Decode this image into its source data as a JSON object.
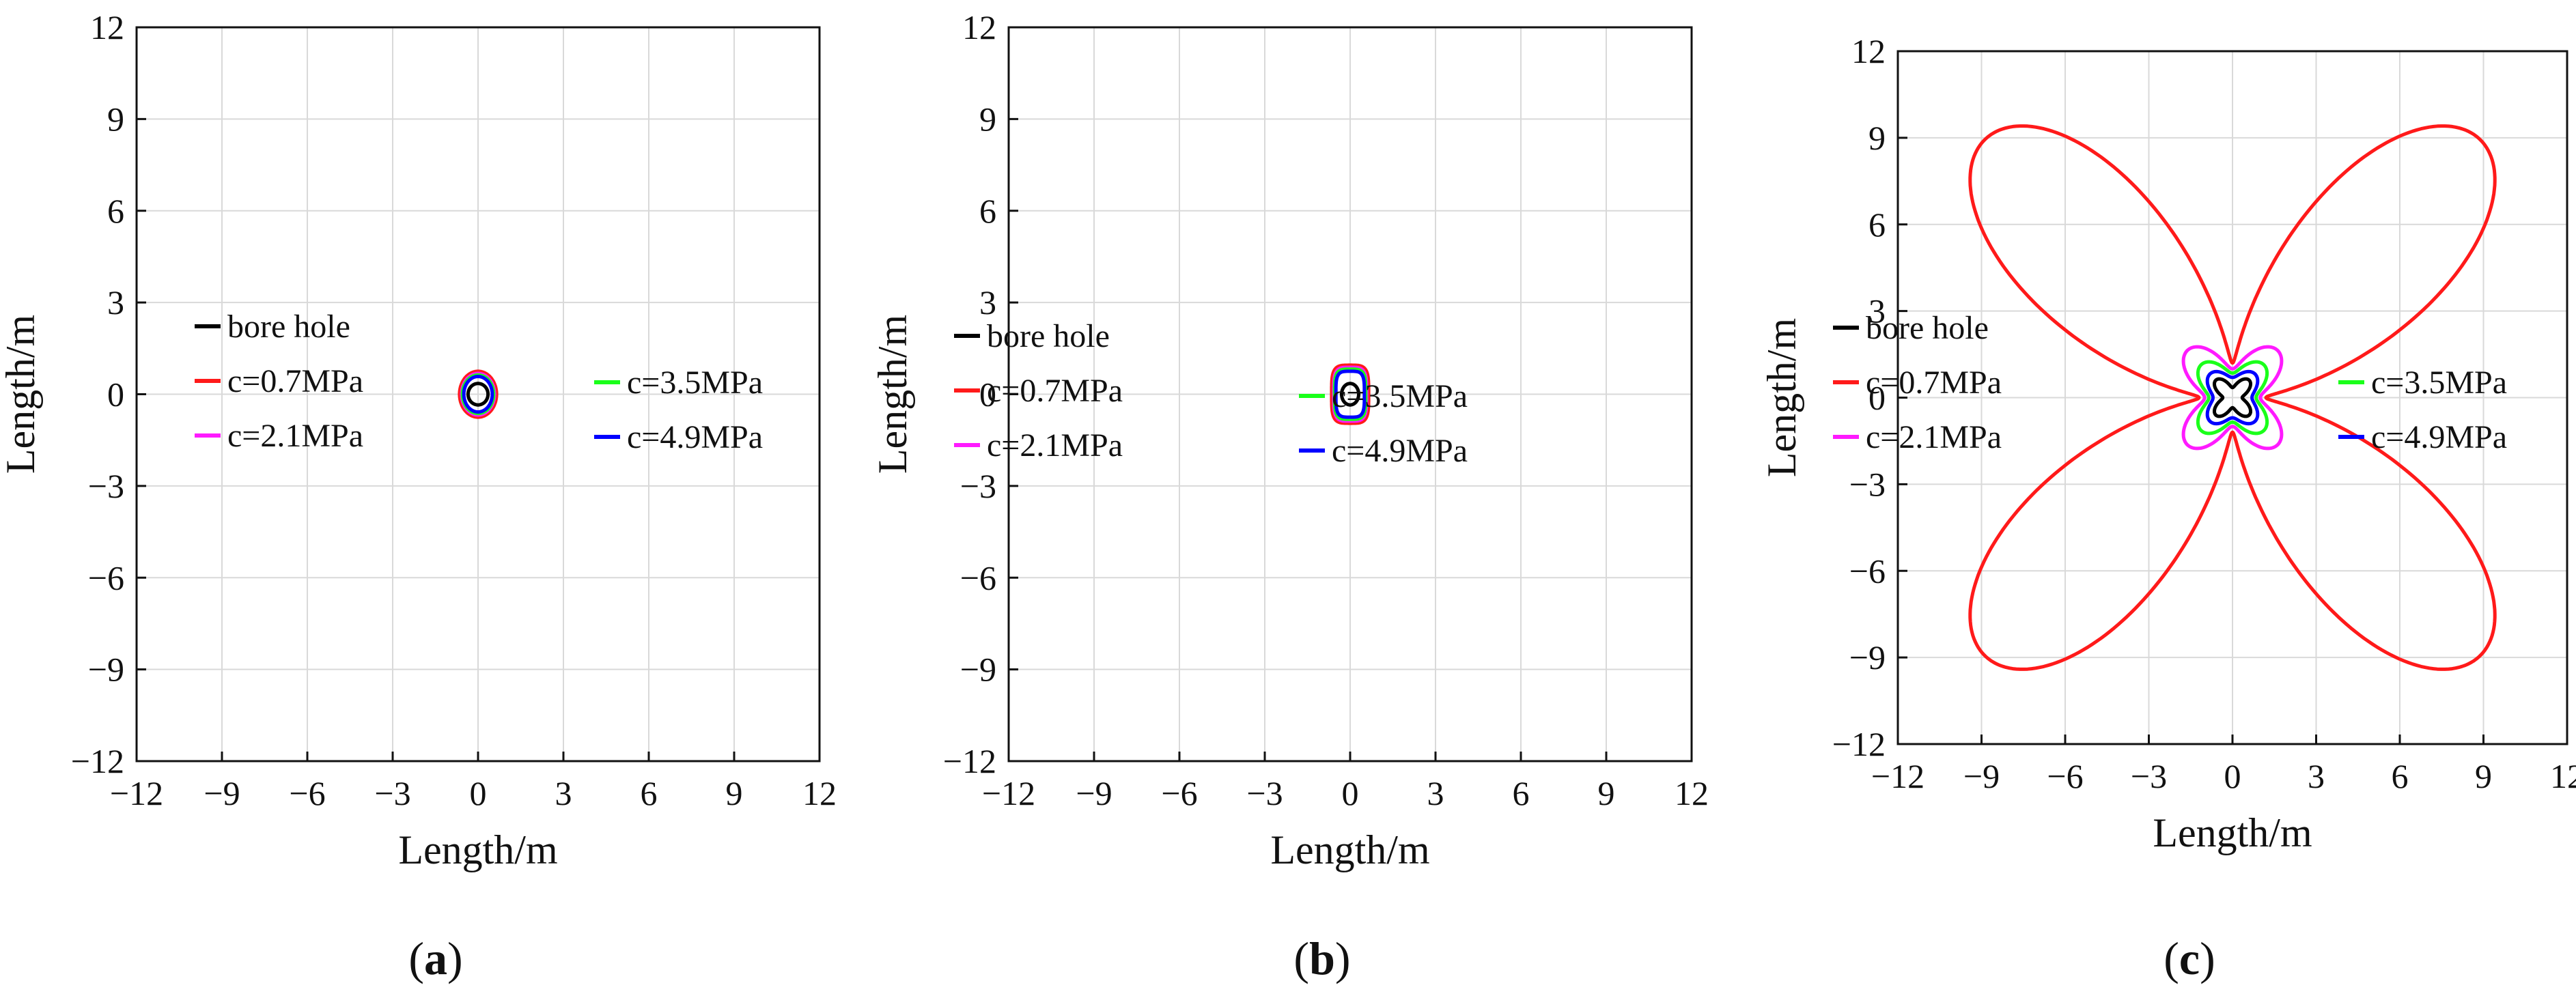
{
  "chart_data": [
    {
      "type": "line",
      "panel_label": "a",
      "xlabel": "Length/m",
      "ylabel": "Length/m",
      "xlim": [
        -12,
        12
      ],
      "ylim": [
        -12,
        12
      ],
      "ticks": [
        -12,
        -9,
        -6,
        -3,
        0,
        3,
        6,
        9,
        12
      ],
      "grid": true,
      "legend": [
        {
          "label": "bore hole",
          "color": "#000000"
        },
        {
          "label": "c=0.7MPa",
          "color": "#ff1a1a"
        },
        {
          "label": "c=2.1MPa",
          "color": "#ff1aff"
        },
        {
          "label": "c=3.5MPa",
          "color": "#1aff1a"
        },
        {
          "label": "c=4.9MPa",
          "color": "#0000ff"
        }
      ],
      "series": [
        {
          "name": "bore hole",
          "color": "#000000",
          "shape": "ellipse",
          "rx": 0.35,
          "ry": 0.35
        },
        {
          "name": "c=0.7MPa",
          "color": "#ff1a1a",
          "shape": "ellipse",
          "rx": 0.65,
          "ry": 0.75
        },
        {
          "name": "c=2.1MPa",
          "color": "#ff1aff",
          "shape": "ellipse",
          "rx": 0.58,
          "ry": 0.68
        },
        {
          "name": "c=3.5MPa",
          "color": "#1aff1a",
          "shape": "ellipse",
          "rx": 0.55,
          "ry": 0.63
        },
        {
          "name": "c=4.9MPa",
          "color": "#0000ff",
          "shape": "ellipse",
          "rx": 0.5,
          "ry": 0.58
        }
      ]
    },
    {
      "type": "line",
      "panel_label": "b",
      "xlabel": "Length/m",
      "ylabel": "Length/m",
      "xlim": [
        -12,
        12
      ],
      "ylim": [
        -12,
        12
      ],
      "ticks": [
        -12,
        -9,
        -6,
        -3,
        0,
        3,
        6,
        9,
        12
      ],
      "grid": true,
      "legend": [
        {
          "label": "bore hole",
          "color": "#000000"
        },
        {
          "label": "c=0.7MPa",
          "color": "#ff1a1a"
        },
        {
          "label": "c=2.1MPa",
          "color": "#ff1aff"
        },
        {
          "label": "c=3.5MPa",
          "color": "#1aff1a"
        },
        {
          "label": "c=4.9MPa",
          "color": "#0000ff"
        }
      ],
      "series": [
        {
          "name": "bore hole",
          "color": "#000000",
          "shape": "ellipse",
          "rx": 0.3,
          "ry": 0.35
        },
        {
          "name": "c=0.7MPa",
          "color": "#ff1a1a",
          "shape": "squircle",
          "rx": 0.65,
          "ry": 0.95
        },
        {
          "name": "c=2.1MPa",
          "color": "#ff1aff",
          "shape": "squircle",
          "rx": 0.58,
          "ry": 0.88
        },
        {
          "name": "c=3.5MPa",
          "color": "#1aff1a",
          "shape": "squircle",
          "rx": 0.55,
          "ry": 0.82
        },
        {
          "name": "c=4.9MPa",
          "color": "#0000ff",
          "shape": "squircle",
          "rx": 0.5,
          "ry": 0.75
        }
      ]
    },
    {
      "type": "line",
      "panel_label": "c",
      "xlabel": "Length/m",
      "ylabel": "Length/m",
      "xlim": [
        -12,
        12
      ],
      "ylim": [
        -12,
        12
      ],
      "ticks": [
        -12,
        -9,
        -6,
        -3,
        0,
        3,
        6,
        9,
        12
      ],
      "grid": true,
      "legend": [
        {
          "label": "bore hole",
          "color": "#000000"
        },
        {
          "label": "c=0.7MPa",
          "color": "#ff1a1a"
        },
        {
          "label": "c=2.1MPa",
          "color": "#ff1aff"
        },
        {
          "label": "c=3.5MPa",
          "color": "#1aff1a"
        },
        {
          "label": "c=4.9MPa",
          "color": "#0000ff"
        }
      ],
      "series": [
        {
          "name": "bore hole",
          "color": "#000000",
          "shape": "butterfly",
          "a": 0.35,
          "b": 0.5
        },
        {
          "name": "c=0.7MPa",
          "color": "#ff1a1a",
          "shape": "butterfly",
          "a": 1.2,
          "b": 11.4
        },
        {
          "name": "c=2.1MPa",
          "color": "#ff1aff",
          "shape": "butterfly",
          "a": 1.0,
          "b": 1.3
        },
        {
          "name": "c=3.5MPa",
          "color": "#1aff1a",
          "shape": "butterfly",
          "a": 0.85,
          "b": 0.75
        },
        {
          "name": "c=4.9MPa",
          "color": "#0000ff",
          "shape": "butterfly",
          "a": 0.7,
          "b": 0.45
        }
      ]
    }
  ],
  "captions": [
    {
      "paren_open": "(",
      "letter": "a",
      "paren_close": ")"
    },
    {
      "paren_open": "(",
      "letter": "b",
      "paren_close": ")"
    },
    {
      "paren_open": "(",
      "letter": "c",
      "paren_close": ")"
    }
  ]
}
